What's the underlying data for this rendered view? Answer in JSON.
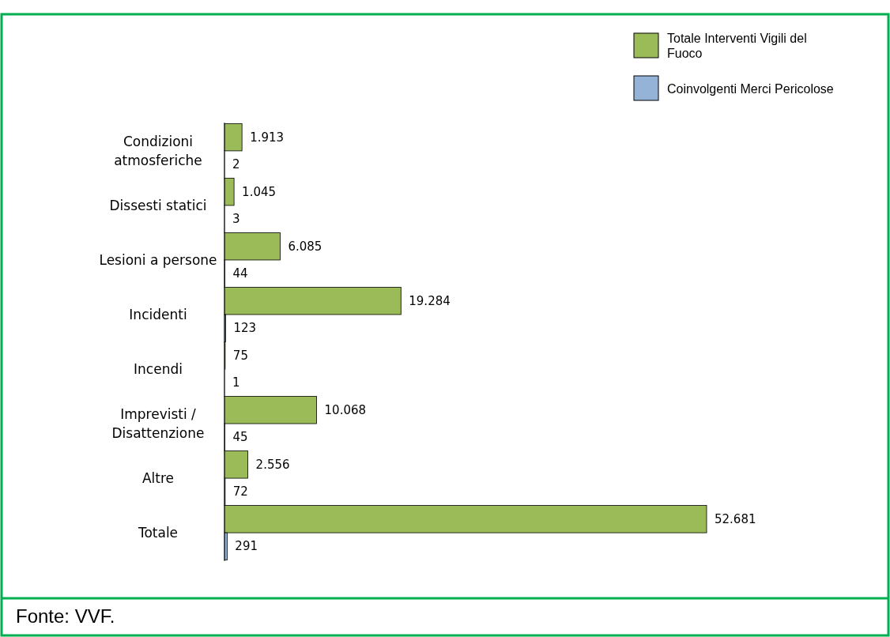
{
  "chart_data": {
    "type": "bar",
    "orientation": "horizontal",
    "categories": [
      "Condizioni atmosferiche",
      "Dissesti statici",
      "Lesioni a persone",
      "Incidenti",
      "Incendi",
      "Imprevisti / Disattenzione",
      "Altre",
      "Totale"
    ],
    "series": [
      {
        "name": "Totale Interventi Vigili del Fuoco",
        "color": "#9bbb59",
        "values": [
          1913,
          1045,
          6085,
          19284,
          75,
          10068,
          2556,
          52681
        ],
        "value_labels": [
          "1.913",
          "1.045",
          "6.085",
          "19.284",
          "75",
          "10.068",
          "2.556",
          "52.681"
        ]
      },
      {
        "name": "Coinvolgenti Merci Pericolose",
        "color": "#95b3d7",
        "values": [
          2,
          3,
          44,
          123,
          1,
          45,
          72,
          291
        ],
        "value_labels": [
          "2",
          "3",
          "44",
          "123",
          "1",
          "45",
          "72",
          "291"
        ]
      }
    ],
    "tick_labels": "y",
    "legend": "top right",
    "annotations": [
      "Fonte: VVF."
    ]
  }
}
